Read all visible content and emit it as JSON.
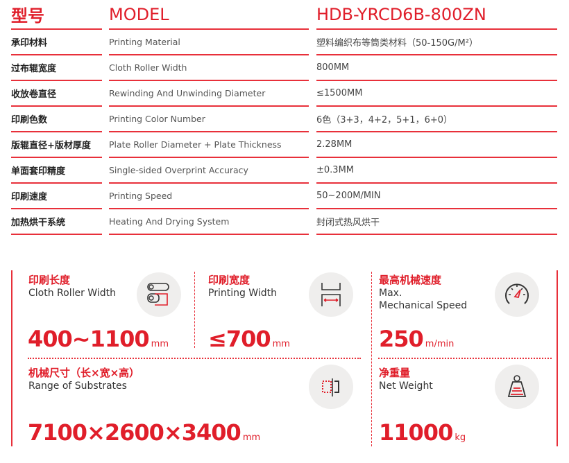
{
  "header": {
    "label_cn": "型号",
    "label_en": "MODEL",
    "value": "HDB-YRCD6B-800ZN"
  },
  "rows": [
    {
      "cn": "承印材料",
      "en": "Printing Material",
      "value": "塑料编织布等筒类材料（50-150G/M²）"
    },
    {
      "cn": "过布辊宽度",
      "en": "Cloth Roller Width",
      "value": "800MM"
    },
    {
      "cn": "收放卷直径",
      "en": "Rewinding And Unwinding Diameter",
      "value": "≤1500MM"
    },
    {
      "cn": "印刷色数",
      "en": "Printing Color Number",
      "value": "6色（3+3，4+2，5+1，6+0）"
    },
    {
      "cn": "版辊直径+版材厚度",
      "en": "Plate Roller Diameter + Plate Thickness",
      "value": "2.28MM"
    },
    {
      "cn": "单面套印精度",
      "en": "Single-sided Overprint Accuracy",
      "value": "±0.3MM"
    },
    {
      "cn": "印刷速度",
      "en": "Printing Speed",
      "value": "50~200M/MIN"
    },
    {
      "cn": "加热烘干系统",
      "en": "Heating And Drying System",
      "value": "封闭式热风烘干"
    }
  ],
  "specs": [
    {
      "cn": "印刷长度",
      "en": "Cloth Roller Width",
      "value": "400~1100",
      "unit": "mm",
      "icon": "rollers-icon"
    },
    {
      "cn": "印刷宽度",
      "en": "Printing Width",
      "value": "≤700",
      "unit": "mm",
      "icon": "width-icon"
    },
    {
      "cn": "最高机械速度",
      "en": "Max.\nMechanical Speed",
      "value": "250",
      "unit": "m/min",
      "icon": "speedometer-icon"
    },
    {
      "cn": "机械尺寸（长×宽×高）",
      "en": "Range of Substrates",
      "value": "7100×2600×3400",
      "unit": "mm",
      "icon": "dimensions-icon"
    },
    {
      "cn": "净重量",
      "en": "Net Weight",
      "value": "11000",
      "unit": "kg",
      "icon": "weight-icon"
    }
  ],
  "colors": {
    "accent": "#e01e2a",
    "circle": "#efeeed"
  }
}
